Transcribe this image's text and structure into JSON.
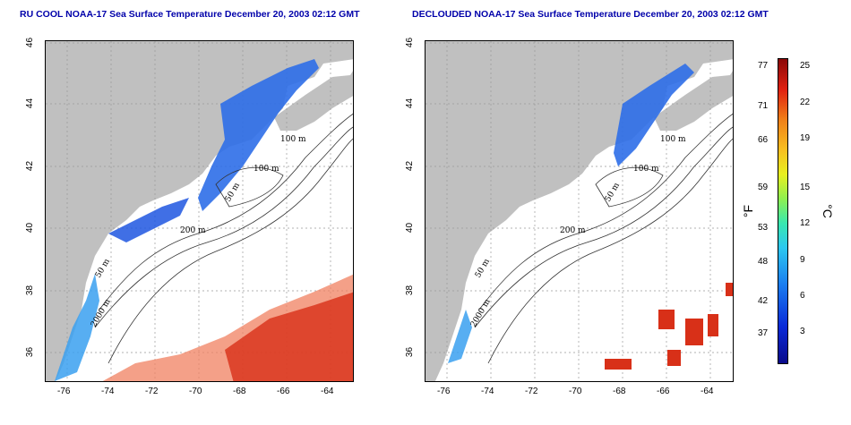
{
  "maps": [
    {
      "id": "left",
      "title": "RU COOL NOAA-17 Sea Surface Temperature December 20, 2003 02:12 GMT",
      "contour_labels": [
        "100 m",
        "100 m",
        "50 m",
        "200 m",
        "50 m",
        "2000 m"
      ]
    },
    {
      "id": "right",
      "title": "DECLOUDED NOAA-17 Sea Surface Temperature December 20, 2003 02:12 GMT",
      "contour_labels": [
        "100 m",
        "100 m",
        "50 m",
        "200 m",
        "50 m",
        "2000 m"
      ]
    }
  ],
  "axes": {
    "lon_ticks": [
      "-76",
      "-74",
      "-72",
      "-70",
      "-68",
      "-66",
      "-64"
    ],
    "lat_ticks": [
      "46",
      "44",
      "42",
      "40",
      "38",
      "36"
    ]
  },
  "colorbar": {
    "fahrenheit_label": "°F",
    "celsius_label": "°C",
    "fahrenheit_ticks": [
      "77",
      "71",
      "66",
      "59",
      "53",
      "48",
      "42",
      "37"
    ],
    "celsius_ticks": [
      "25",
      "22",
      "19",
      "15",
      "12",
      "9",
      "6",
      "3"
    ]
  }
}
